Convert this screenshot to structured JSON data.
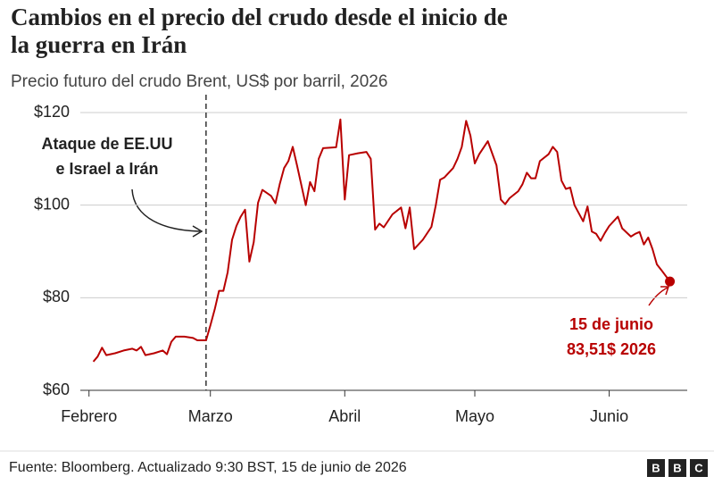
{
  "chart_data": {
    "type": "line",
    "title": [
      "Cambios en el precio del crudo desde el inicio de",
      "la guerra en Irán"
    ],
    "subtitle": "Precio futuro del crudo Brent, US$ por barril, 2026",
    "x": [
      "2026-02-02",
      "2026-02-03",
      "2026-02-04",
      "2026-02-05",
      "2026-02-07",
      "2026-02-09",
      "2026-02-11",
      "2026-02-12",
      "2026-02-13",
      "2026-02-14",
      "2026-02-16",
      "2026-02-18",
      "2026-02-19",
      "2026-02-20",
      "2026-02-21",
      "2026-02-23",
      "2026-02-25",
      "2026-02-26",
      "2026-02-28",
      "2026-03-01",
      "2026-03-02",
      "2026-03-03",
      "2026-03-04",
      "2026-03-05",
      "2026-03-06",
      "2026-03-07",
      "2026-03-08",
      "2026-03-09",
      "2026-03-10",
      "2026-03-11",
      "2026-03-12",
      "2026-03-13",
      "2026-03-15",
      "2026-03-16",
      "2026-03-17",
      "2026-03-18",
      "2026-03-19",
      "2026-03-20",
      "2026-03-21",
      "2026-03-23",
      "2026-03-24",
      "2026-03-25",
      "2026-03-26",
      "2026-03-27",
      "2026-03-30",
      "2026-03-31",
      "2026-04-01",
      "2026-04-02",
      "2026-04-04",
      "2026-04-06",
      "2026-04-07",
      "2026-04-08",
      "2026-04-09",
      "2026-04-10",
      "2026-04-12",
      "2026-04-14",
      "2026-04-15",
      "2026-04-16",
      "2026-04-17",
      "2026-04-19",
      "2026-04-21",
      "2026-04-22",
      "2026-04-23",
      "2026-04-24",
      "2026-04-26",
      "2026-04-27",
      "2026-04-28",
      "2026-04-29",
      "2026-04-30",
      "2026-05-01",
      "2026-05-02",
      "2026-05-04",
      "2026-05-06",
      "2026-05-07",
      "2026-05-08",
      "2026-05-09",
      "2026-05-11",
      "2026-05-12",
      "2026-05-13",
      "2026-05-14",
      "2026-05-15",
      "2026-05-16",
      "2026-05-18",
      "2026-05-19",
      "2026-05-20",
      "2026-05-21",
      "2026-05-22",
      "2026-05-23",
      "2026-05-24",
      "2026-05-26",
      "2026-05-27",
      "2026-05-28",
      "2026-05-29",
      "2026-05-30",
      "2026-05-31",
      "2026-06-01",
      "2026-06-03",
      "2026-06-04",
      "2026-06-06",
      "2026-06-07",
      "2026-06-08",
      "2026-06-09",
      "2026-06-10",
      "2026-06-11",
      "2026-06-12",
      "2026-06-13",
      "2026-06-15"
    ],
    "values": [
      66.2,
      67.3,
      69.2,
      67.6,
      68.0,
      68.6,
      69.0,
      68.6,
      69.4,
      67.6,
      68.0,
      68.6,
      67.8,
      70.5,
      71.6,
      71.6,
      71.3,
      70.8,
      70.8,
      74.0,
      77.5,
      81.5,
      81.5,
      85.5,
      92.5,
      95.5,
      97.5,
      99.0,
      87.8,
      92.0,
      100.5,
      103.3,
      102.0,
      100.4,
      104.5,
      108.0,
      109.5,
      112.6,
      108.5,
      100.0,
      105.0,
      103.0,
      110.0,
      112.3,
      112.5,
      118.5,
      101.2,
      110.8,
      111.2,
      111.5,
      110.0,
      94.7,
      96.0,
      95.2,
      98.0,
      99.5,
      95.0,
      99.5,
      90.5,
      92.5,
      95.3,
      100.0,
      105.5,
      106.0,
      108.0,
      110.0,
      112.6,
      118.2,
      115.0,
      109.0,
      111.0,
      113.8,
      108.6,
      101.2,
      100.2,
      101.5,
      103.0,
      104.5,
      107.0,
      105.8,
      105.8,
      109.5,
      111.0,
      112.6,
      111.5,
      105.3,
      103.5,
      103.8,
      100.0,
      96.5,
      99.7,
      94.3,
      93.8,
      92.3,
      94.0,
      95.5,
      97.5,
      95.0,
      93.2,
      93.8,
      94.2,
      91.5,
      93.0,
      90.5,
      87.2,
      86.0,
      83.51
    ],
    "color": "#b80000",
    "xlim": [
      "2026-01-30",
      "2026-06-19"
    ],
    "xticks": [
      {
        "value": "2026-02-01",
        "label": "Febrero"
      },
      {
        "value": "2026-03-01",
        "label": "Marzo"
      },
      {
        "value": "2026-04-01",
        "label": "Abril"
      },
      {
        "value": "2026-05-01",
        "label": "Mayo"
      },
      {
        "value": "2026-06-01",
        "label": "Junio"
      }
    ],
    "ylim": [
      60,
      120
    ],
    "yticks": [
      {
        "value": 60,
        "label": "$60"
      },
      {
        "value": 80,
        "label": "$80"
      },
      {
        "value": 100,
        "label": "$100"
      },
      {
        "value": 120,
        "label": "$120"
      }
    ],
    "grid": true,
    "annotations": [
      {
        "text": [
          "Ataque de EE.UU",
          "e Israel a Irán"
        ],
        "x": "2026-02-28"
      }
    ],
    "end_label": [
      "15 de junio",
      "83,51$ 2026"
    ],
    "source": "Fuente: Bloomberg. Actualizado 9:30 BST, 15 de junio de 2026",
    "logo": [
      "B",
      "B",
      "C"
    ]
  }
}
